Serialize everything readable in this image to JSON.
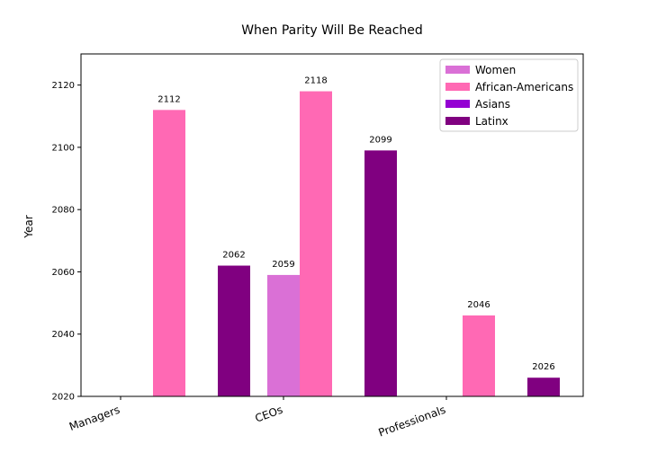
{
  "chart_data": {
    "type": "bar",
    "title": "When Parity Will Be Reached",
    "xlabel": "",
    "ylabel": "Year",
    "ylim": [
      2020,
      2130
    ],
    "yticks": [
      2020,
      2040,
      2060,
      2080,
      2100,
      2120
    ],
    "categories": [
      "Managers",
      "CEOs",
      "Professionals"
    ],
    "series": [
      {
        "name": "Women",
        "color": "#da70d6",
        "values": [
          null,
          2059,
          null
        ]
      },
      {
        "name": "African-Americans",
        "color": "#ff69b4",
        "values": [
          2112,
          2118,
          2046
        ]
      },
      {
        "name": "Asians",
        "color": "#9400d3",
        "values": [
          null,
          null,
          null
        ]
      },
      {
        "name": "Latinx",
        "color": "#800080",
        "values": [
          2062,
          2099,
          2026
        ]
      }
    ],
    "legend_position": "top-right",
    "grid": false
  }
}
